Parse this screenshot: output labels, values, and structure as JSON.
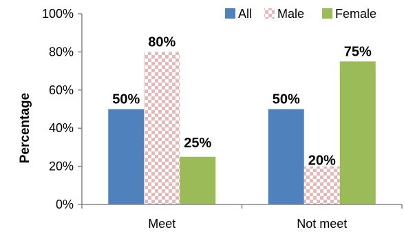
{
  "chart_data": {
    "type": "bar",
    "title": "",
    "xlabel": "",
    "ylabel": "Percentage",
    "ylim": [
      0,
      100
    ],
    "yticks": [
      0,
      20,
      40,
      60,
      80,
      100
    ],
    "ytick_labels": [
      "0%",
      "20%",
      "40%",
      "60%",
      "80%",
      "100%"
    ],
    "categories": [
      "Meet",
      "Not meet"
    ],
    "series": [
      {
        "name": "All",
        "values": [
          50,
          50
        ],
        "labels": [
          "50%",
          "50%"
        ],
        "color": "#4f81bd",
        "pattern": "solid"
      },
      {
        "name": "Male",
        "values": [
          80,
          20
        ],
        "labels": [
          "80%",
          "20%"
        ],
        "color": "#e6b9b8",
        "pattern": "checker"
      },
      {
        "name": "Female",
        "values": [
          25,
          75
        ],
        "labels": [
          "25%",
          "75%"
        ],
        "color": "#9bbb59",
        "pattern": "solid"
      }
    ],
    "grid": false,
    "legend": {
      "position": "top-right",
      "entries": [
        "All",
        "Male",
        "Female"
      ]
    }
  }
}
